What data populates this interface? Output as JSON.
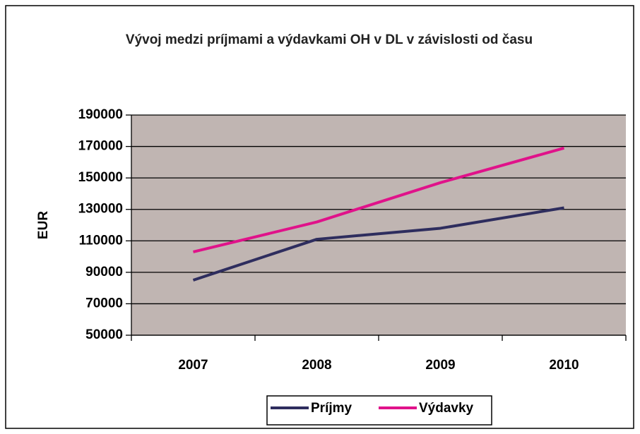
{
  "chart_data": {
    "type": "line",
    "title": "Vývoj medzi príjmami a výdavkami OH v DL v závislosti od času",
    "y_label": "EUR",
    "categories": [
      "2007",
      "2008",
      "2009",
      "2010"
    ],
    "series": [
      {
        "name": "Príjmy",
        "color": "#2e2d5e",
        "values": [
          85000,
          111000,
          118000,
          131000
        ]
      },
      {
        "name": "Výdavky",
        "color": "#e0128a",
        "values": [
          103000,
          122000,
          147000,
          169000
        ]
      }
    ],
    "ylim": [
      50000,
      190000
    ],
    "yticks": [
      50000,
      70000,
      90000,
      110000,
      130000,
      150000,
      170000,
      190000
    ],
    "grid": true,
    "legend": "bottom"
  }
}
